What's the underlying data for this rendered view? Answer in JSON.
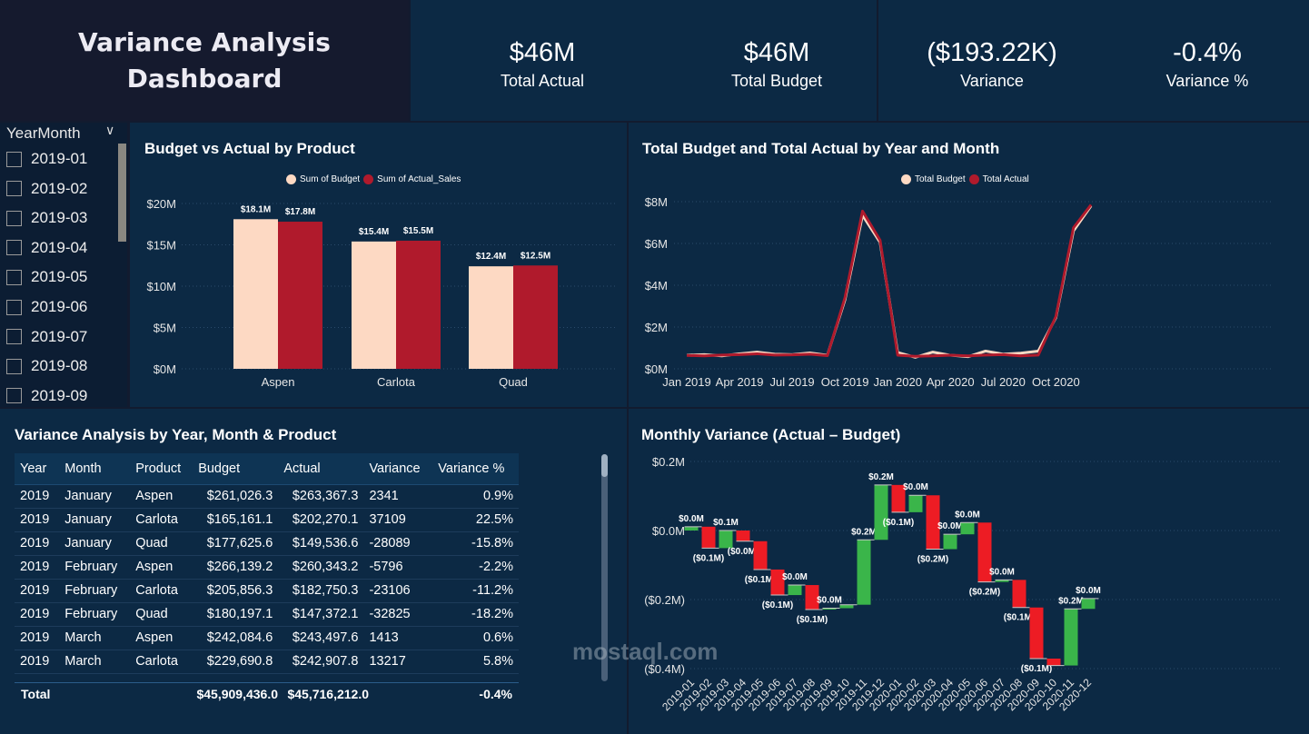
{
  "title": "Variance Analysis Dashboard",
  "kpis": [
    {
      "value": "$46M",
      "label": "Total Actual"
    },
    {
      "value": "$46M",
      "label": "Total Budget"
    },
    {
      "value": "($193.22K)",
      "label": "Variance"
    },
    {
      "value": "-0.4%",
      "label": "Variance %"
    }
  ],
  "slicer": {
    "header": "YearMonth",
    "items": [
      "2019-01",
      "2019-02",
      "2019-03",
      "2019-04",
      "2019-05",
      "2019-06",
      "2019-07",
      "2019-08",
      "2019-09"
    ]
  },
  "colors": {
    "budget": "#fdd9c3",
    "actual": "#b01a2c",
    "increase": "#3ab54a",
    "decrease": "#ed1c24"
  },
  "chart_data": [
    {
      "type": "bar",
      "title": "Budget vs Actual by Product",
      "categories": [
        "Aspen",
        "Carlota",
        "Quad"
      ],
      "series": [
        {
          "name": "Sum of Budget",
          "values": [
            18.1,
            15.4,
            12.4
          ],
          "labels": [
            "$18.1M",
            "$15.4M",
            "$12.4M"
          ]
        },
        {
          "name": "Sum of Actual_Sales",
          "values": [
            17.8,
            15.5,
            12.5
          ],
          "labels": [
            "$17.8M",
            "$15.5M",
            "$12.5M"
          ]
        }
      ],
      "yticks": [
        "$0M",
        "$5M",
        "$10M",
        "$15M",
        "$20M"
      ],
      "ylim": [
        0,
        20
      ],
      "legend": "top-center"
    },
    {
      "type": "line",
      "title": "Total Budget and Total Actual by Year and Month",
      "x": [
        "2019-01",
        "2019-02",
        "2019-03",
        "2019-04",
        "2019-05",
        "2019-06",
        "2019-07",
        "2019-08",
        "2019-09",
        "2019-10",
        "2019-11",
        "2019-12",
        "2020-01",
        "2020-02",
        "2020-03",
        "2020-04",
        "2020-05",
        "2020-06",
        "2020-07",
        "2020-08",
        "2020-09",
        "2020-10",
        "2020-11",
        "2020-12"
      ],
      "xticks": [
        "Jan 2019",
        "Apr 2019",
        "Jul 2019",
        "Oct 2019",
        "Jan 2020",
        "Apr 2020",
        "Jul 2020",
        "Oct 2020"
      ],
      "series": [
        {
          "name": "Total Budget",
          "values": [
            0.65,
            0.68,
            0.62,
            0.72,
            0.8,
            0.7,
            0.68,
            0.76,
            0.65,
            3.3,
            7.35,
            6.05,
            0.78,
            0.55,
            0.8,
            0.65,
            0.58,
            0.85,
            0.7,
            0.75,
            0.85,
            2.45,
            6.6,
            7.8
          ]
        },
        {
          "name": "Total Actual",
          "values": [
            0.64,
            0.62,
            0.66,
            0.68,
            0.72,
            0.66,
            0.67,
            0.7,
            0.63,
            3.4,
            7.55,
            6.15,
            0.65,
            0.6,
            0.62,
            0.65,
            0.62,
            0.66,
            0.68,
            0.62,
            0.66,
            2.5,
            6.75,
            7.85
          ]
        }
      ],
      "yticks": [
        "$0M",
        "$2M",
        "$4M",
        "$6M",
        "$8M"
      ],
      "ylim": [
        0,
        8
      ],
      "legend": "top-center"
    },
    {
      "type": "waterfall",
      "title": "Monthly Variance (Actual – Budget)",
      "categories": [
        "2019-01",
        "2019-02",
        "2019-03",
        "2019-04",
        "2019-05",
        "2019-06",
        "2019-07",
        "2019-08",
        "2019-09",
        "2019-10",
        "2019-11",
        "2019-12",
        "2020-01",
        "2020-02",
        "2020-03",
        "2020-04",
        "2020-05",
        "2020-06",
        "2020-07",
        "2020-08",
        "2020-09",
        "2020-10",
        "2020-11",
        "2020-12"
      ],
      "values": [
        0.011,
        -0.062,
        0.051,
        -0.031,
        -0.082,
        -0.074,
        0.029,
        -0.071,
        0.004,
        0.01,
        0.188,
        0.159,
        -0.079,
        0.049,
        -0.156,
        0.043,
        0.034,
        -0.172,
        0.006,
        -0.08,
        -0.148,
        -0.02,
        0.164,
        0.03
      ],
      "labels": [
        "$0.0M",
        "($0.1M)",
        "$0.1M",
        "($0.0M)",
        "($0.1M)",
        "($0.1M)",
        "$0.0M",
        "($0.1M)",
        "$0.0M",
        "",
        "$0.2M",
        "$0.2M",
        "($0.1M)",
        "$0.0M",
        "($0.2M)",
        "$0.0M",
        "$0.0M",
        "($0.2M)",
        "$0.0M",
        "($0.1M)",
        "($0.1M)",
        "",
        "$0.2M",
        "$0.0M"
      ],
      "yticks": [
        "($0.4M)",
        "($0.2M)",
        "$0.0M",
        "$0.2M"
      ],
      "ylim": [
        -0.4,
        0.2
      ]
    }
  ],
  "table": {
    "title": "Variance Analysis by Year, Month & Product",
    "columns": [
      "Year",
      "Month",
      "Product",
      "Budget",
      "Actual",
      "Variance",
      "Variance %"
    ],
    "rows": [
      [
        "2019",
        "January",
        "Aspen",
        "$261,026.3",
        "$263,367.3",
        "2341",
        "0.9%"
      ],
      [
        "2019",
        "January",
        "Carlota",
        "$165,161.1",
        "$202,270.1",
        "37109",
        "22.5%"
      ],
      [
        "2019",
        "January",
        "Quad",
        "$177,625.6",
        "$149,536.6",
        "-28089",
        "-15.8%"
      ],
      [
        "2019",
        "February",
        "Aspen",
        "$266,139.2",
        "$260,343.2",
        "-5796",
        "-2.2%"
      ],
      [
        "2019",
        "February",
        "Carlota",
        "$205,856.3",
        "$182,750.3",
        "-23106",
        "-11.2%"
      ],
      [
        "2019",
        "February",
        "Quad",
        "$180,197.1",
        "$147,372.1",
        "-32825",
        "-18.2%"
      ],
      [
        "2019",
        "March",
        "Aspen",
        "$242,084.6",
        "$243,497.6",
        "1413",
        "0.6%"
      ],
      [
        "2019",
        "March",
        "Carlota",
        "$229,690.8",
        "$242,907.8",
        "13217",
        "5.8%"
      ]
    ],
    "total": {
      "label": "Total",
      "budget": "$45,909,436.0",
      "actual": "$45,716,212.0",
      "variance_pct": "-0.4%"
    }
  },
  "watermark": "mostaql.com"
}
